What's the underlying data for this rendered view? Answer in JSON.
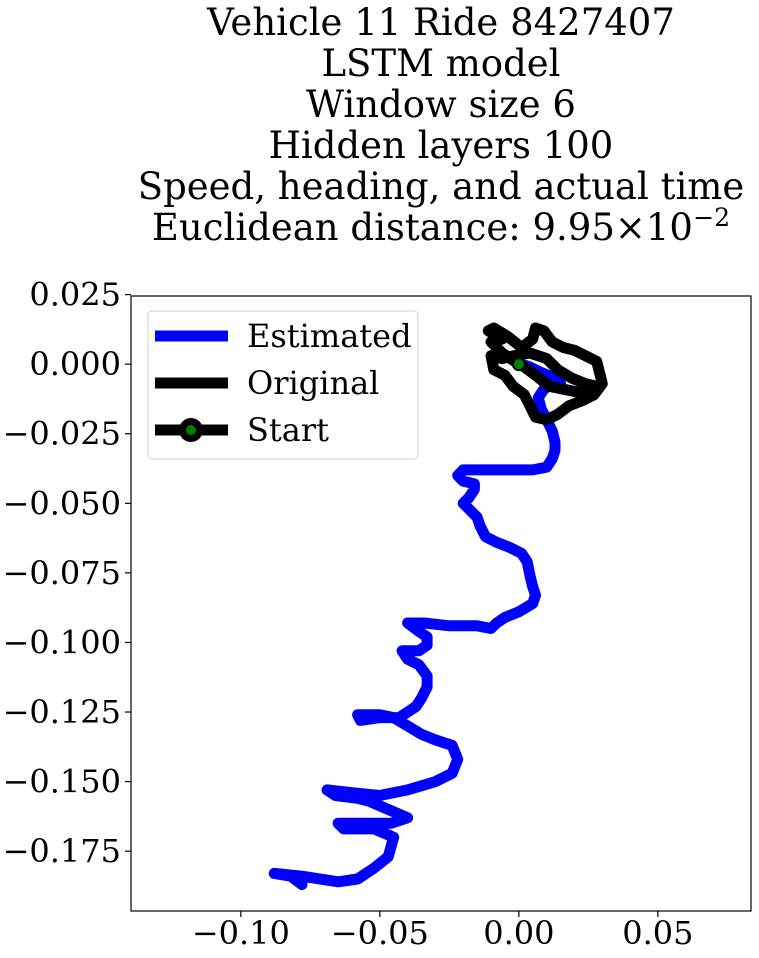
{
  "chart_data": {
    "type": "line",
    "title_lines": [
      "Vehicle 11 Ride 8427407",
      "LSTM model",
      "Window size 6",
      "Hidden layers 100",
      "Speed, heading, and actual time"
    ],
    "distance_label": "Euclidean distance: 9.95",
    "distance_times": "×",
    "distance_base": "10",
    "distance_exponent": "−2",
    "xlabel": "",
    "ylabel": "",
    "xlim": [
      -0.1395,
      0.0835
    ],
    "ylim": [
      -0.1965,
      0.0245
    ],
    "x_ticks": [
      -0.1,
      -0.05,
      0.0,
      0.05
    ],
    "x_tick_labels": [
      "−0.10",
      "−0.05",
      "0.00",
      "0.05"
    ],
    "y_ticks": [
      0.025,
      0.0,
      -0.025,
      -0.05,
      -0.075,
      -0.1,
      -0.125,
      -0.15,
      -0.175
    ],
    "y_tick_labels": [
      "0.025",
      "0.000",
      "−0.025",
      "−0.050",
      "−0.075",
      "−0.100",
      "−0.125",
      "−0.150",
      "−0.175"
    ],
    "legend_position": "upper-left",
    "legend": [
      "Estimated",
      "Original",
      "Start"
    ],
    "colors": {
      "estimated": "#0000ff",
      "original": "#000000",
      "start_marker": "#008000",
      "start_ring": "#000000"
    },
    "series": [
      {
        "name": "Estimated",
        "points": [
          [
            -0.078,
            -0.187
          ],
          [
            -0.082,
            -0.184
          ],
          [
            -0.088,
            -0.183
          ],
          [
            -0.078,
            -0.184
          ],
          [
            -0.065,
            -0.186
          ],
          [
            -0.058,
            -0.185
          ],
          [
            -0.052,
            -0.181
          ],
          [
            -0.047,
            -0.177
          ],
          [
            -0.045,
            -0.17
          ],
          [
            -0.052,
            -0.167
          ],
          [
            -0.063,
            -0.167
          ],
          [
            -0.065,
            -0.165
          ],
          [
            -0.058,
            -0.165
          ],
          [
            -0.046,
            -0.165
          ],
          [
            -0.04,
            -0.163
          ],
          [
            -0.047,
            -0.16
          ],
          [
            -0.054,
            -0.157
          ],
          [
            -0.058,
            -0.156
          ],
          [
            -0.066,
            -0.155
          ],
          [
            -0.069,
            -0.153
          ],
          [
            -0.06,
            -0.154
          ],
          [
            -0.05,
            -0.155
          ],
          [
            -0.04,
            -0.153
          ],
          [
            -0.03,
            -0.15
          ],
          [
            -0.024,
            -0.147
          ],
          [
            -0.022,
            -0.142
          ],
          [
            -0.024,
            -0.137
          ],
          [
            -0.03,
            -0.135
          ],
          [
            -0.035,
            -0.133
          ],
          [
            -0.04,
            -0.13
          ],
          [
            -0.045,
            -0.127
          ],
          [
            -0.05,
            -0.126
          ],
          [
            -0.058,
            -0.126
          ],
          [
            -0.057,
            -0.128
          ],
          [
            -0.05,
            -0.127
          ],
          [
            -0.043,
            -0.127
          ],
          [
            -0.037,
            -0.123
          ],
          [
            -0.035,
            -0.12
          ],
          [
            -0.033,
            -0.116
          ],
          [
            -0.033,
            -0.112
          ],
          [
            -0.036,
            -0.108
          ],
          [
            -0.04,
            -0.106
          ],
          [
            -0.042,
            -0.103
          ],
          [
            -0.036,
            -0.103
          ],
          [
            -0.033,
            -0.101
          ],
          [
            -0.033,
            -0.098
          ],
          [
            -0.036,
            -0.096
          ],
          [
            -0.04,
            -0.093
          ],
          [
            -0.034,
            -0.093
          ],
          [
            -0.025,
            -0.094
          ],
          [
            -0.015,
            -0.094
          ],
          [
            -0.01,
            -0.095
          ],
          [
            -0.008,
            -0.093
          ],
          [
            -0.005,
            -0.091
          ],
          [
            0.0,
            -0.089
          ],
          [
            0.005,
            -0.086
          ],
          [
            0.006,
            -0.083
          ],
          [
            0.005,
            -0.08
          ],
          [
            0.004,
            -0.076
          ],
          [
            0.003,
            -0.071
          ],
          [
            0.001,
            -0.068
          ],
          [
            -0.003,
            -0.066
          ],
          [
            -0.008,
            -0.064
          ],
          [
            -0.012,
            -0.062
          ],
          [
            -0.014,
            -0.058
          ],
          [
            -0.015,
            -0.055
          ],
          [
            -0.018,
            -0.052
          ],
          [
            -0.02,
            -0.05
          ],
          [
            -0.018,
            -0.048
          ],
          [
            -0.016,
            -0.045
          ],
          [
            -0.016,
            -0.043
          ],
          [
            -0.02,
            -0.042
          ],
          [
            -0.022,
            -0.04
          ],
          [
            -0.02,
            -0.038
          ],
          [
            -0.012,
            -0.038
          ],
          [
            -0.004,
            -0.038
          ],
          [
            0.005,
            -0.038
          ],
          [
            0.01,
            -0.037
          ],
          [
            0.012,
            -0.034
          ],
          [
            0.013,
            -0.031
          ],
          [
            0.013,
            -0.028
          ],
          [
            0.012,
            -0.024
          ],
          [
            0.01,
            -0.02
          ],
          [
            0.008,
            -0.016
          ],
          [
            0.007,
            -0.012
          ],
          [
            0.009,
            -0.009
          ],
          [
            0.012,
            -0.007
          ],
          [
            0.015,
            -0.007
          ],
          [
            0.013,
            -0.005
          ],
          [
            0.008,
            -0.003
          ],
          [
            0.004,
            -0.001
          ],
          [
            0.001,
            0.0
          ]
        ]
      },
      {
        "name": "Original",
        "points": [
          [
            0.0,
            0.0
          ],
          [
            -0.006,
            0.004
          ],
          [
            -0.01,
            0.008
          ],
          [
            -0.006,
            0.009
          ],
          [
            -0.011,
            0.012
          ],
          [
            -0.009,
            0.013
          ],
          [
            -0.004,
            0.01
          ],
          [
            0.001,
            0.006
          ],
          [
            0.005,
            0.009
          ],
          [
            0.006,
            0.013
          ],
          [
            0.009,
            0.012
          ],
          [
            0.012,
            0.008
          ],
          [
            0.016,
            0.006
          ],
          [
            0.02,
            0.005
          ],
          [
            0.024,
            0.003
          ],
          [
            0.028,
            0.001
          ],
          [
            0.029,
            -0.003
          ],
          [
            0.03,
            -0.007
          ],
          [
            0.027,
            -0.011
          ],
          [
            0.023,
            -0.013
          ],
          [
            0.018,
            -0.015
          ],
          [
            0.014,
            -0.018
          ],
          [
            0.01,
            -0.02
          ],
          [
            0.006,
            -0.019
          ],
          [
            0.004,
            -0.015
          ],
          [
            0.002,
            -0.011
          ],
          [
            -0.002,
            -0.008
          ],
          [
            -0.005,
            -0.004
          ],
          [
            -0.009,
            -0.002
          ],
          [
            -0.01,
            0.003
          ],
          [
            -0.006,
            0.002
          ],
          [
            -0.002,
            0.003
          ],
          [
            0.004,
            0.004
          ],
          [
            0.01,
            0.002
          ],
          [
            0.014,
            -0.002
          ],
          [
            0.019,
            -0.005
          ],
          [
            0.024,
            -0.007
          ],
          [
            0.028,
            -0.008
          ],
          [
            0.026,
            -0.011
          ],
          [
            0.021,
            -0.01
          ],
          [
            0.016,
            -0.009
          ],
          [
            0.011,
            -0.008
          ],
          [
            0.006,
            -0.004
          ],
          [
            0.002,
            -0.001
          ],
          [
            0.0,
            0.0
          ]
        ]
      }
    ],
    "start_point": [
      0.0,
      0.0
    ]
  }
}
